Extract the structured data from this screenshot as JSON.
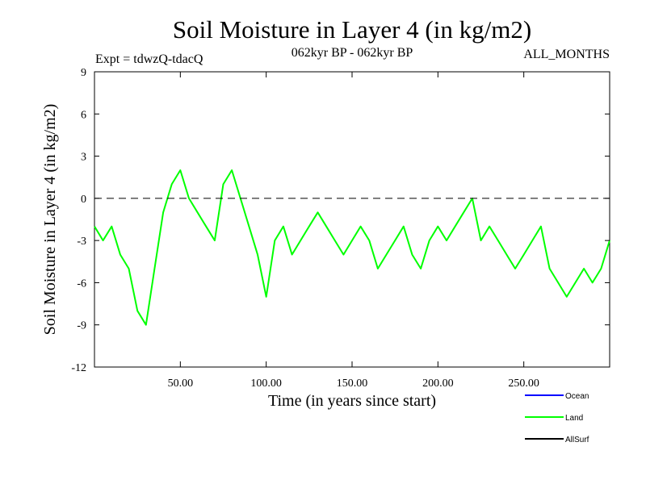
{
  "chart_data": {
    "type": "line",
    "title": "Soil Moisture in Layer 4 (in kg/m2)",
    "subtitle_left": "Expt = tdwzQ-tdacQ",
    "subtitle_center": "062kyr BP - 062kyr BP",
    "subtitle_right": "ALL_MONTHS",
    "xlabel": "Time (in years since start)",
    "ylabel": "Soil Moisture in Layer 4 (in kg/m2)",
    "xlim": [
      0,
      300
    ],
    "ylim": [
      -12,
      9
    ],
    "x_ticks": [
      50,
      100,
      150,
      200,
      250
    ],
    "x_tick_labels": [
      "50.00",
      "100.00",
      "150.00",
      "200.00",
      "250.00"
    ],
    "y_ticks": [
      -12,
      -9,
      -6,
      -3,
      0,
      3,
      6,
      9
    ],
    "y_tick_labels": [
      "-12",
      "-9",
      "-6",
      "-3",
      "0",
      "3",
      "6",
      "9"
    ],
    "reference_line": 0,
    "colors": {
      "Ocean": "#0000ff",
      "Land": "#00ff00",
      "AllSurf": "#000000"
    },
    "legend": {
      "placement": "bottom-right",
      "entries": [
        "Ocean",
        "Land",
        "AllSurf"
      ]
    },
    "series": [
      {
        "name": "Land",
        "x": [
          0,
          5,
          10,
          15,
          20,
          25,
          30,
          35,
          40,
          45,
          50,
          55,
          60,
          65,
          70,
          75,
          80,
          85,
          90,
          95,
          100,
          105,
          110,
          115,
          120,
          125,
          130,
          135,
          140,
          145,
          150,
          155,
          160,
          165,
          170,
          175,
          180,
          185,
          190,
          195,
          200,
          205,
          210,
          215,
          220,
          225,
          230,
          235,
          240,
          245,
          250,
          255,
          260,
          265,
          270,
          275,
          280,
          285,
          290,
          295,
          300
        ],
        "values": [
          -2,
          -3,
          -2,
          -4,
          -5,
          -8,
          -9,
          -5,
          -1,
          1,
          2,
          0,
          -1,
          -2,
          -3,
          1,
          2,
          0,
          -2,
          -4,
          -7,
          -3,
          -2,
          -4,
          -3,
          -2,
          -1,
          -2,
          -3,
          -4,
          -3,
          -2,
          -3,
          -5,
          -4,
          -3,
          -2,
          -4,
          -5,
          -3,
          -2,
          -3,
          -2,
          -1,
          0,
          -3,
          -2,
          -3,
          -4,
          -5,
          -4,
          -3,
          -2,
          -5,
          -6,
          -7,
          -6,
          -5,
          -6,
          -5,
          -3
        ]
      }
    ]
  }
}
